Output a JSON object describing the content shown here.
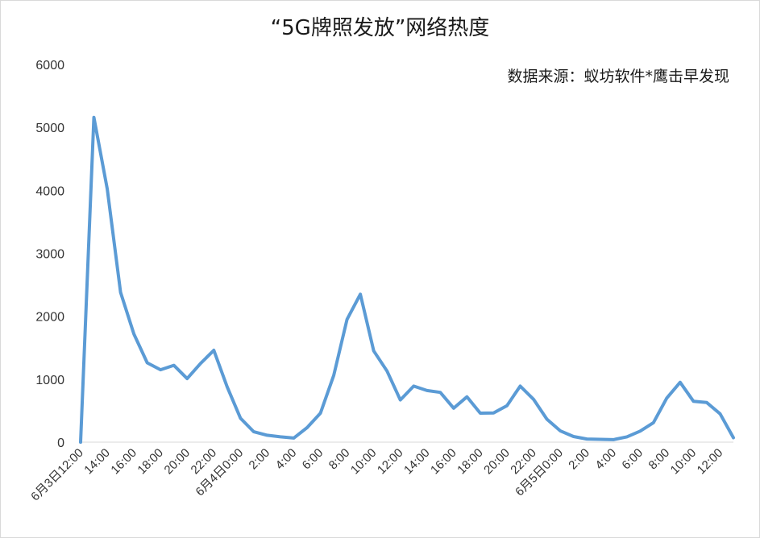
{
  "chart_data": {
    "type": "line",
    "title": "“5G牌照发放”网络热度",
    "annotation": "数据来源：蚁坊软件*鹰击早发现",
    "xlabel": "",
    "ylabel": "",
    "ylim": [
      0,
      6000
    ],
    "yticks": [
      "0",
      "1000",
      "2000",
      "3000",
      "4000",
      "5000",
      "6000"
    ],
    "grid": false,
    "legend": "none",
    "line_color": "#5b9bd5",
    "x_tick_labels": [
      "6月3日12:00",
      "14:00",
      "16:00",
      "18:00",
      "20:00",
      "22:00",
      "6月4日0:00",
      "2:00",
      "4:00",
      "6:00",
      "8:00",
      "10:00",
      "12:00",
      "14:00",
      "16:00",
      "18:00",
      "20:00",
      "22:00",
      "6月5日0:00",
      "2:00",
      "4:00",
      "6:00",
      "8:00",
      "10:00",
      "12:00"
    ],
    "series": [
      {
        "values": [
          0,
          5160,
          4020,
          2380,
          1720,
          1260,
          1150,
          1220,
          1010,
          1250,
          1460,
          880,
          380,
          165,
          110,
          85,
          65,
          230,
          460,
          1060,
          1950,
          2350,
          1450,
          1130,
          670,
          890,
          820,
          790,
          540,
          720,
          460,
          465,
          580,
          890,
          680,
          365,
          180,
          90,
          50,
          45,
          40,
          85,
          175,
          310,
          700,
          950,
          650,
          630,
          450,
          70
        ]
      }
    ]
  }
}
